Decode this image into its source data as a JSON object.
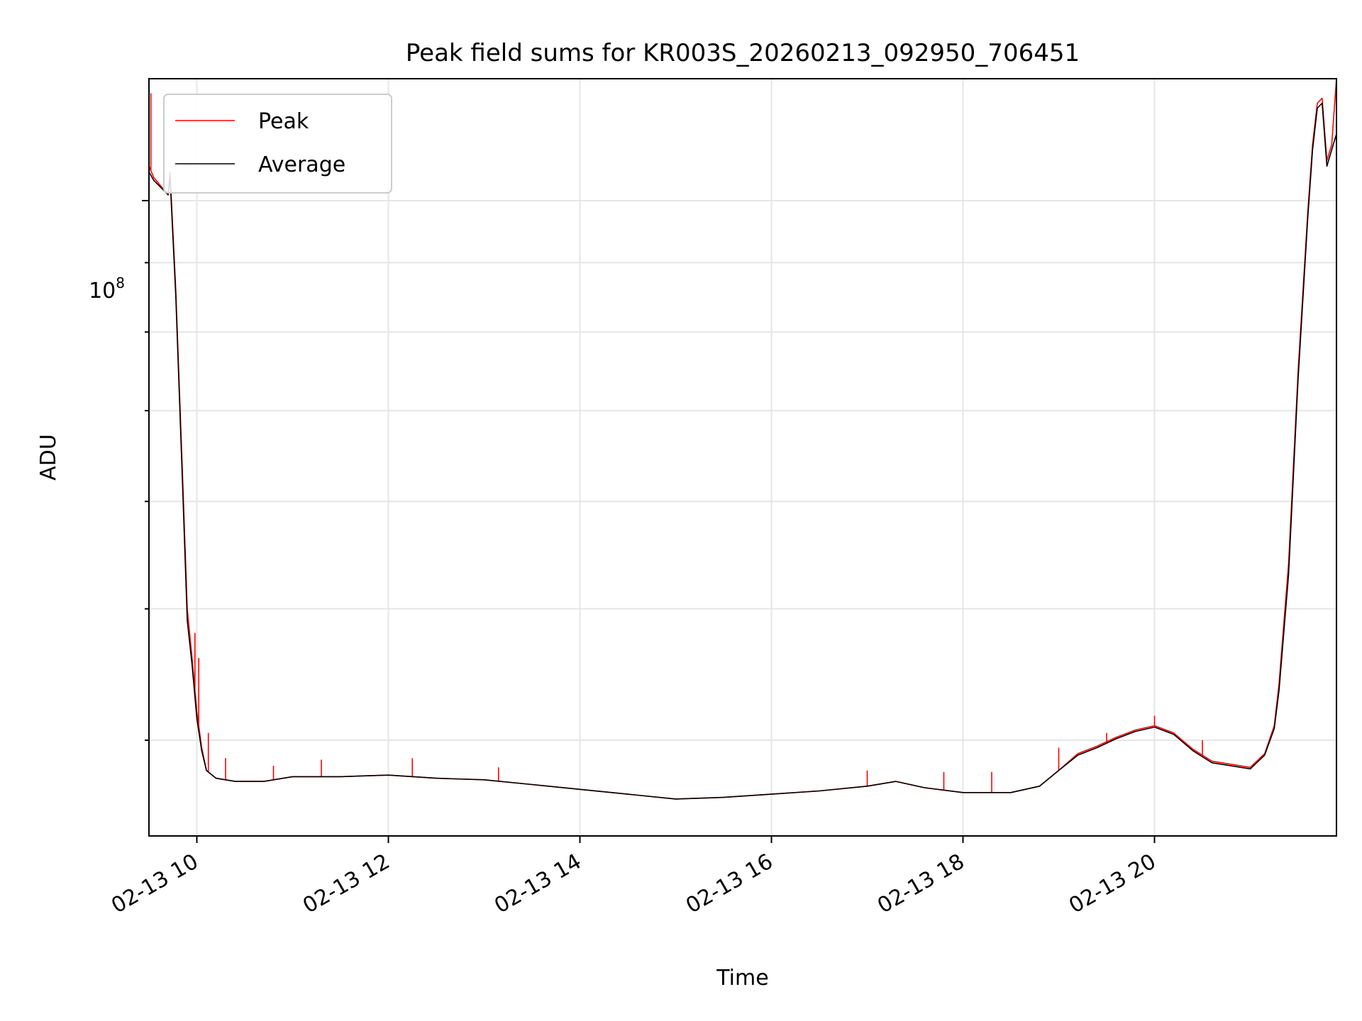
{
  "chart_data": {
    "type": "line",
    "title": "Peak field sums for KR003S_20260213_092950_706451",
    "xlabel": "Time",
    "ylabel": "ADU",
    "yscale": "log",
    "grid": true,
    "legend_position": "top-left",
    "x_tick_labels": [
      "02-13 10",
      "02-13 12",
      "02-13 14",
      "02-13 16",
      "02-13 18",
      "02-13 20"
    ],
    "x_ticks_hours": [
      10,
      12,
      14,
      16,
      18,
      20
    ],
    "y_tick_label_base": "10",
    "y_tick_label_exp": "8",
    "y_tick_value": 100000000,
    "x_range_hours": [
      9.5,
      21.9
    ],
    "y_range": [
      34000000,
      123000000
    ],
    "series": [
      {
        "name": "Peak",
        "color": "#ff0000",
        "x_hours": [
          9.5,
          9.55,
          9.7,
          9.72,
          9.78,
          9.85,
          9.9,
          9.95,
          10.0,
          10.05,
          10.1,
          10.2,
          10.4,
          10.7,
          11.0,
          11.5,
          12.0,
          12.5,
          13.0,
          13.5,
          14.0,
          14.5,
          15.0,
          15.5,
          16.0,
          16.5,
          17.0,
          17.3,
          17.6,
          18.0,
          18.5,
          18.8,
          19.0,
          19.2,
          19.4,
          19.6,
          19.8,
          20.0,
          20.2,
          20.4,
          20.6,
          20.8,
          21.0,
          21.15,
          21.25,
          21.3,
          21.4,
          21.5,
          21.6,
          21.65,
          21.7,
          21.75,
          21.8,
          21.85,
          21.9
        ],
        "y_values": [
          106000000,
          104000000,
          101000000,
          105000000,
          86000000,
          63000000,
          50000000,
          46000000,
          42000000,
          39500000,
          38000000,
          37500000,
          37300000,
          37300000,
          37600000,
          37600000,
          37700000,
          37500000,
          37400000,
          37100000,
          36800000,
          36500000,
          36200000,
          36300000,
          36500000,
          36700000,
          37000000,
          37300000,
          36900000,
          36600000,
          36600000,
          37000000,
          38000000,
          39100000,
          39600000,
          40200000,
          40700000,
          41000000,
          40500000,
          39400000,
          38600000,
          38400000,
          38200000,
          39100000,
          41000000,
          44000000,
          54000000,
          75000000,
          98000000,
          110000000,
          118000000,
          119000000,
          107000000,
          110000000,
          123000000
        ],
        "spikes": [
          {
            "x_hours": 9.52,
            "y": 120000000
          },
          {
            "x_hours": 9.98,
            "y": 48000000
          },
          {
            "x_hours": 10.02,
            "y": 46000000
          },
          {
            "x_hours": 10.12,
            "y": 40500000
          },
          {
            "x_hours": 10.3,
            "y": 38800000
          },
          {
            "x_hours": 10.8,
            "y": 38300000
          },
          {
            "x_hours": 11.3,
            "y": 38700000
          },
          {
            "x_hours": 12.25,
            "y": 38800000
          },
          {
            "x_hours": 13.15,
            "y": 38200000
          },
          {
            "x_hours": 17.0,
            "y": 38000000
          },
          {
            "x_hours": 17.8,
            "y": 37900000
          },
          {
            "x_hours": 18.3,
            "y": 37900000
          },
          {
            "x_hours": 19.0,
            "y": 39500000
          },
          {
            "x_hours": 19.5,
            "y": 40500000
          },
          {
            "x_hours": 20.0,
            "y": 41700000
          },
          {
            "x_hours": 20.5,
            "y": 40000000
          }
        ]
      },
      {
        "name": "Average",
        "color": "#000000",
        "x_hours": [
          9.5,
          9.55,
          9.7,
          9.72,
          9.78,
          9.85,
          9.9,
          9.95,
          10.0,
          10.05,
          10.1,
          10.2,
          10.4,
          10.7,
          11.0,
          11.5,
          12.0,
          12.5,
          13.0,
          13.5,
          14.0,
          14.5,
          15.0,
          15.5,
          16.0,
          16.5,
          17.0,
          17.3,
          17.6,
          18.0,
          18.5,
          18.8,
          19.0,
          19.2,
          19.4,
          19.6,
          19.8,
          20.0,
          20.2,
          20.4,
          20.6,
          20.8,
          21.0,
          21.15,
          21.25,
          21.3,
          21.4,
          21.5,
          21.6,
          21.65,
          21.7,
          21.75,
          21.8,
          21.85,
          21.9
        ],
        "y_values": [
          105000000,
          103500000,
          101000000,
          104000000,
          85000000,
          62000000,
          49000000,
          45500000,
          41500000,
          39300000,
          38000000,
          37500000,
          37300000,
          37300000,
          37600000,
          37600000,
          37700000,
          37500000,
          37400000,
          37100000,
          36800000,
          36500000,
          36200000,
          36300000,
          36500000,
          36700000,
          37000000,
          37300000,
          36900000,
          36600000,
          36600000,
          37000000,
          38000000,
          39000000,
          39500000,
          40100000,
          40600000,
          40900000,
          40400000,
          39300000,
          38500000,
          38300000,
          38100000,
          39000000,
          40800000,
          43500000,
          53000000,
          74000000,
          97000000,
          109000000,
          117000000,
          118000000,
          106000000,
          109000000,
          112000000
        ]
      }
    ]
  }
}
